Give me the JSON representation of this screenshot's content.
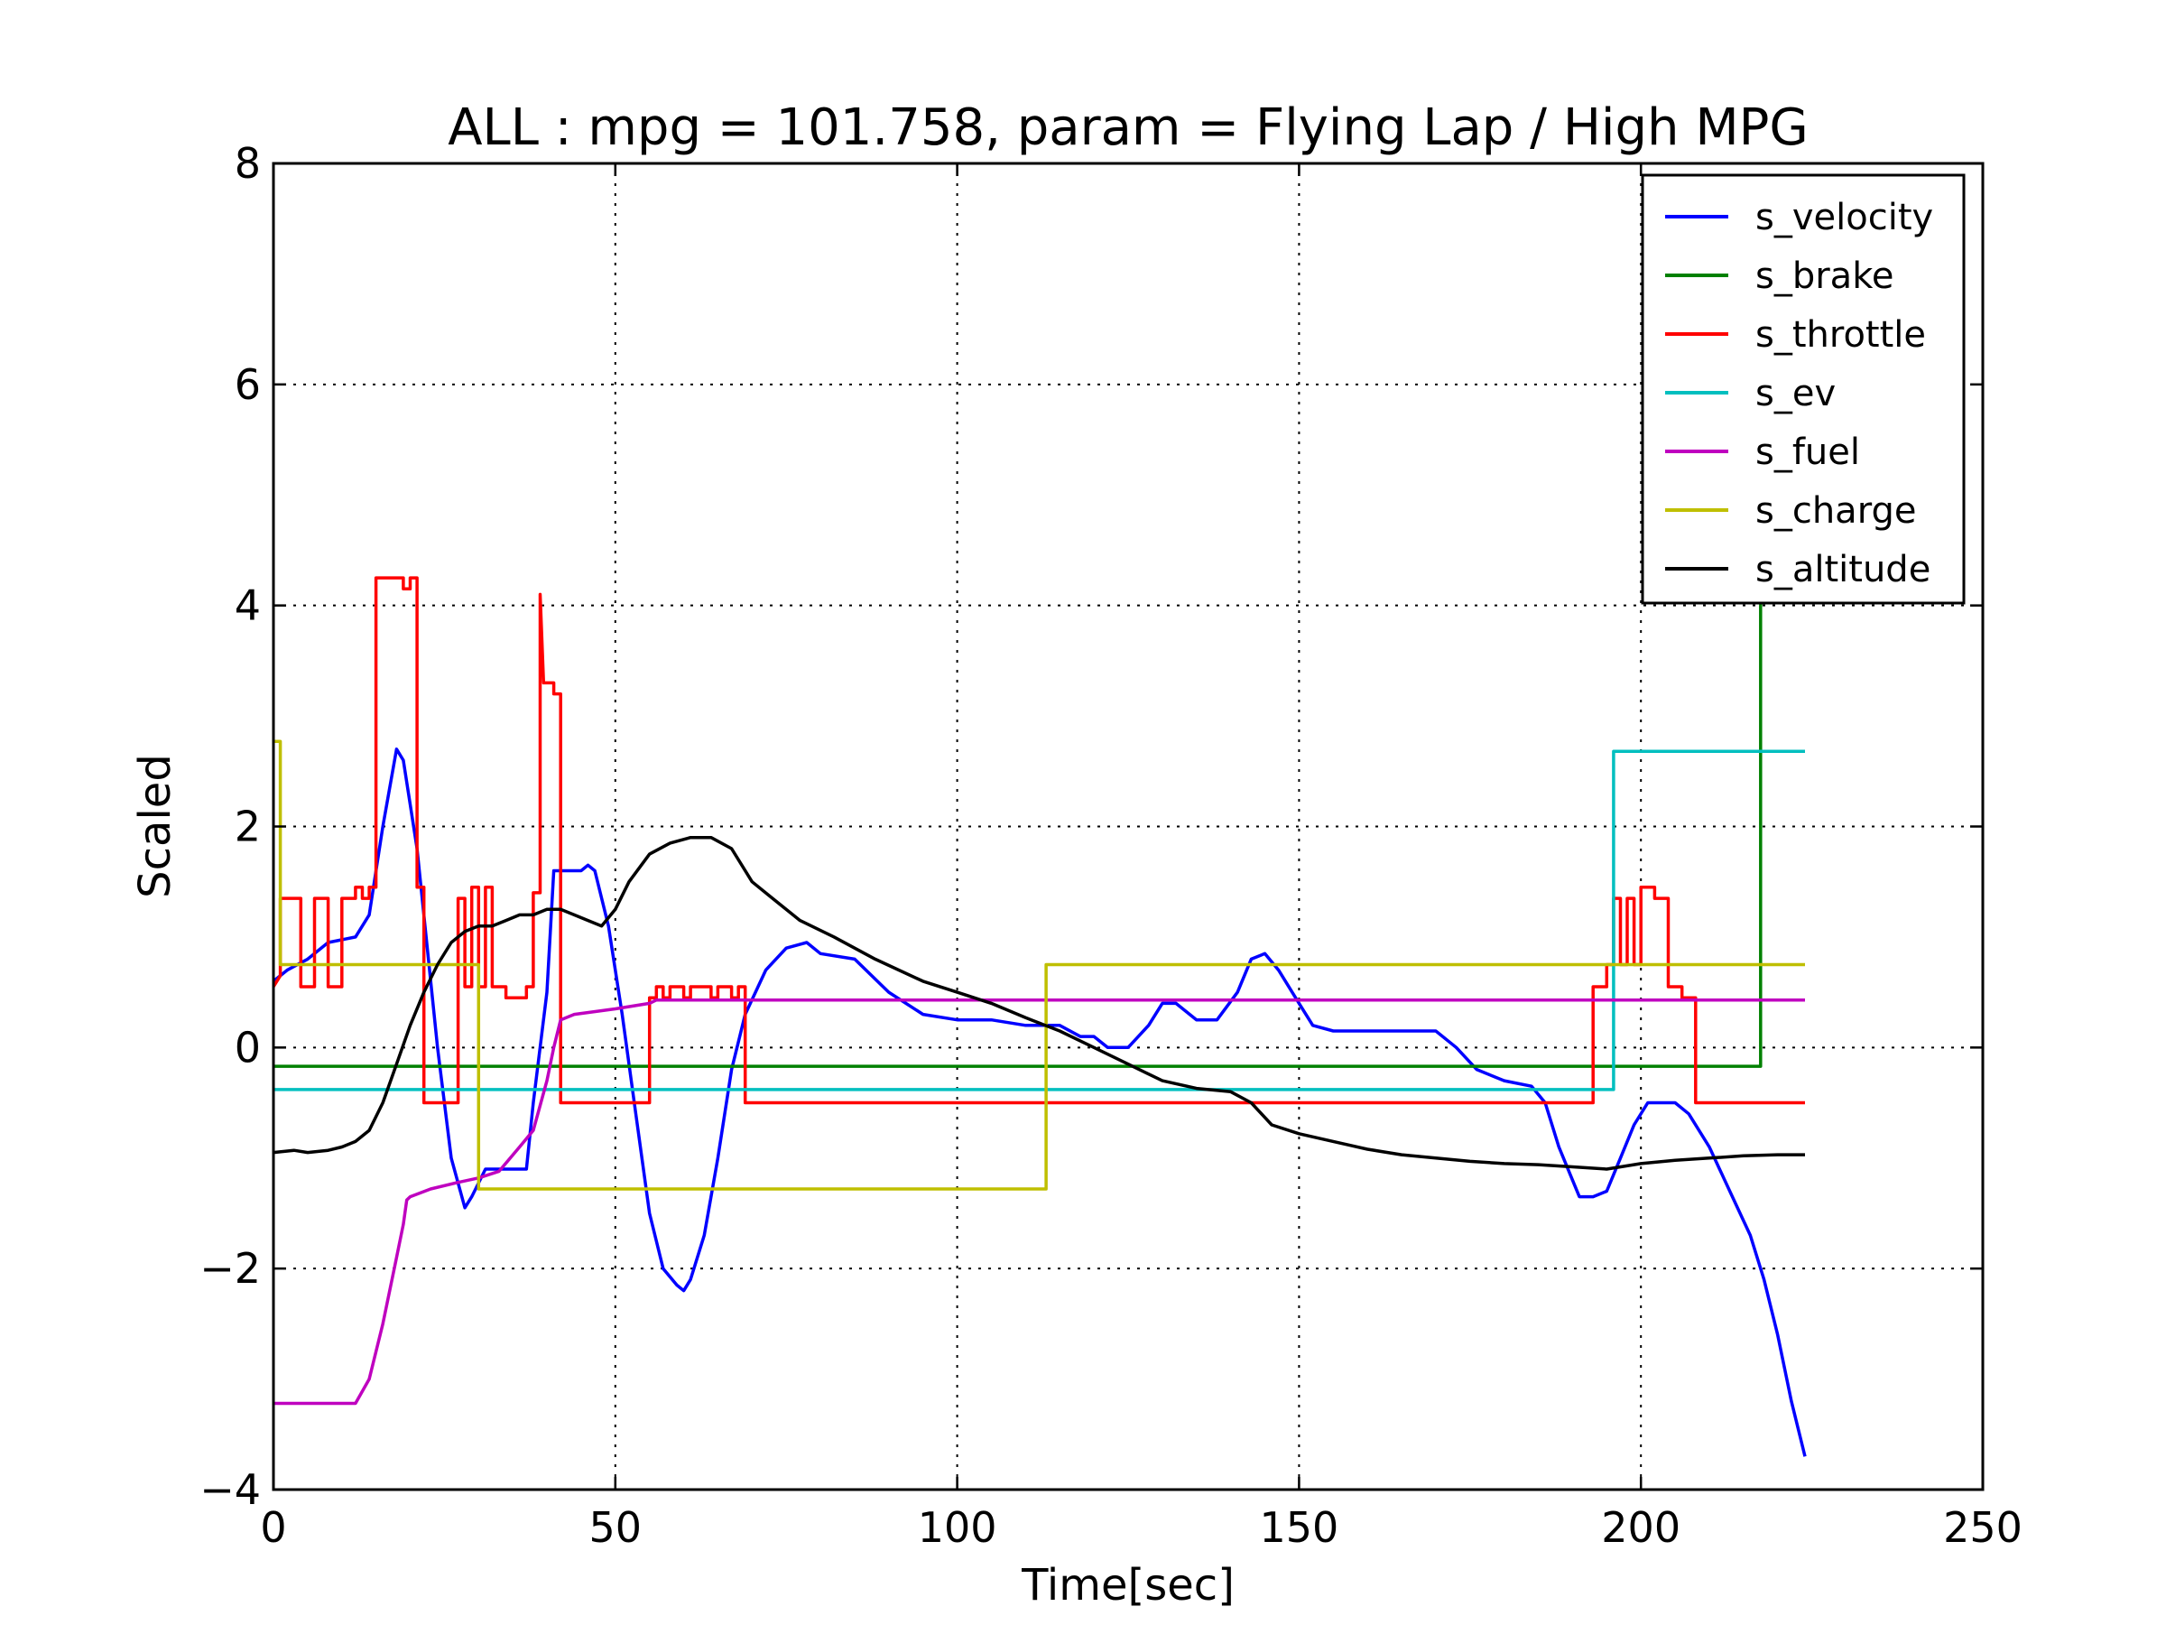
{
  "chart_data": {
    "type": "line",
    "title": "ALL : mpg = 101.758, param = Flying Lap / High MPG",
    "xlabel": "Time[sec]",
    "ylabel": "Scaled",
    "xlim": [
      0,
      250
    ],
    "ylim": [
      -4,
      8
    ],
    "xticks": [
      0,
      50,
      100,
      150,
      200,
      250
    ],
    "xtick_labels": [
      "0",
      "50",
      "100",
      "150",
      "200",
      "250"
    ],
    "yticks": [
      -4,
      -2,
      0,
      2,
      4,
      6,
      8
    ],
    "ytick_labels": [
      "−4",
      "−2",
      "0",
      "2",
      "4",
      "6",
      "8"
    ],
    "grid": true,
    "legend_position": "top-right",
    "series": [
      {
        "name": "s_velocity",
        "color": "#0000ff",
        "points": [
          [
            0,
            0.6
          ],
          [
            2,
            0.7
          ],
          [
            5,
            0.8
          ],
          [
            8,
            0.95
          ],
          [
            12,
            1.0
          ],
          [
            14,
            1.2
          ],
          [
            16,
            2.0
          ],
          [
            18,
            2.7
          ],
          [
            19,
            2.6
          ],
          [
            21,
            1.8
          ],
          [
            24,
            0.0
          ],
          [
            26,
            -1.0
          ],
          [
            28,
            -1.45
          ],
          [
            29,
            -1.35
          ],
          [
            31,
            -1.1
          ],
          [
            37,
            -1.1
          ],
          [
            38,
            -0.5
          ],
          [
            40,
            0.5
          ],
          [
            41,
            1.6
          ],
          [
            45,
            1.6
          ],
          [
            46,
            1.65
          ],
          [
            47,
            1.6
          ],
          [
            49,
            1.1
          ],
          [
            51,
            0.3
          ],
          [
            53,
            -0.6
          ],
          [
            55,
            -1.5
          ],
          [
            57,
            -2.0
          ],
          [
            59,
            -2.15
          ],
          [
            60,
            -2.2
          ],
          [
            61,
            -2.1
          ],
          [
            63,
            -1.7
          ],
          [
            65,
            -1.0
          ],
          [
            67,
            -0.2
          ],
          [
            69,
            0.3
          ],
          [
            72,
            0.7
          ],
          [
            75,
            0.9
          ],
          [
            78,
            0.95
          ],
          [
            80,
            0.85
          ],
          [
            85,
            0.8
          ],
          [
            90,
            0.5
          ],
          [
            95,
            0.3
          ],
          [
            100,
            0.25
          ],
          [
            105,
            0.25
          ],
          [
            110,
            0.2
          ],
          [
            115,
            0.2
          ],
          [
            118,
            0.1
          ],
          [
            120,
            0.1
          ],
          [
            122,
            0.0
          ],
          [
            125,
            0.0
          ],
          [
            128,
            0.2
          ],
          [
            130,
            0.4
          ],
          [
            132,
            0.4
          ],
          [
            135,
            0.25
          ],
          [
            138,
            0.25
          ],
          [
            141,
            0.5
          ],
          [
            143,
            0.8
          ],
          [
            145,
            0.85
          ],
          [
            147,
            0.7
          ],
          [
            150,
            0.4
          ],
          [
            152,
            0.2
          ],
          [
            155,
            0.15
          ],
          [
            165,
            0.15
          ],
          [
            170,
            0.15
          ],
          [
            173,
            0.0
          ],
          [
            176,
            -0.2
          ],
          [
            180,
            -0.3
          ],
          [
            184,
            -0.35
          ],
          [
            186,
            -0.5
          ],
          [
            188,
            -0.9
          ],
          [
            190,
            -1.2
          ],
          [
            191,
            -1.35
          ],
          [
            193,
            -1.35
          ],
          [
            195,
            -1.3
          ],
          [
            197,
            -1.0
          ],
          [
            199,
            -0.7
          ],
          [
            201,
            -0.5
          ],
          [
            205,
            -0.5
          ],
          [
            207,
            -0.6
          ],
          [
            210,
            -0.9
          ],
          [
            213,
            -1.3
          ],
          [
            216,
            -1.7
          ],
          [
            218,
            -2.1
          ],
          [
            220,
            -2.6
          ],
          [
            222,
            -3.2
          ],
          [
            224,
            -3.7
          ]
        ]
      },
      {
        "name": "s_brake",
        "color": "#008000",
        "points": [
          [
            0,
            -0.17
          ],
          [
            217.5,
            -0.17
          ],
          [
            217.5,
            4.0
          ],
          [
            218,
            4.4
          ]
        ]
      },
      {
        "name": "s_throttle",
        "color": "#ff0000",
        "points": [
          [
            0,
            0.55
          ],
          [
            1,
            0.65
          ],
          [
            1,
            1.35
          ],
          [
            4,
            1.35
          ],
          [
            4,
            0.55
          ],
          [
            6,
            0.55
          ],
          [
            6,
            1.35
          ],
          [
            8,
            1.35
          ],
          [
            8,
            0.55
          ],
          [
            10,
            0.55
          ],
          [
            10,
            1.35
          ],
          [
            12,
            1.35
          ],
          [
            12,
            1.45
          ],
          [
            13,
            1.45
          ],
          [
            13,
            1.35
          ],
          [
            14,
            1.35
          ],
          [
            14,
            1.45
          ],
          [
            15,
            1.45
          ],
          [
            15,
            4.25
          ],
          [
            19,
            4.25
          ],
          [
            19,
            4.15
          ],
          [
            20,
            4.15
          ],
          [
            20,
            4.25
          ],
          [
            21,
            4.25
          ],
          [
            21,
            1.45
          ],
          [
            22,
            1.45
          ],
          [
            22,
            -0.5
          ],
          [
            27,
            -0.5
          ],
          [
            27,
            1.35
          ],
          [
            28,
            1.35
          ],
          [
            28,
            0.55
          ],
          [
            29,
            0.55
          ],
          [
            29,
            1.45
          ],
          [
            30,
            1.45
          ],
          [
            30,
            0.55
          ],
          [
            31,
            0.55
          ],
          [
            31,
            1.45
          ],
          [
            32,
            1.45
          ],
          [
            32,
            0.55
          ],
          [
            34,
            0.55
          ],
          [
            34,
            0.45
          ],
          [
            37,
            0.45
          ],
          [
            37,
            0.55
          ],
          [
            38,
            0.55
          ],
          [
            38,
            1.4
          ],
          [
            39,
            1.4
          ],
          [
            39,
            4.1
          ],
          [
            39.5,
            3.3
          ],
          [
            41,
            3.3
          ],
          [
            41,
            3.2
          ],
          [
            42,
            3.2
          ],
          [
            42,
            -0.5
          ],
          [
            55,
            -0.5
          ],
          [
            55,
            0.45
          ],
          [
            56,
            0.45
          ],
          [
            56,
            0.55
          ],
          [
            57,
            0.55
          ],
          [
            57,
            0.45
          ],
          [
            58,
            0.45
          ],
          [
            58,
            0.55
          ],
          [
            60,
            0.55
          ],
          [
            60,
            0.45
          ],
          [
            61,
            0.45
          ],
          [
            61,
            0.55
          ],
          [
            64,
            0.55
          ],
          [
            64,
            0.45
          ],
          [
            65,
            0.45
          ],
          [
            65,
            0.55
          ],
          [
            67,
            0.55
          ],
          [
            67,
            0.45
          ],
          [
            68,
            0.45
          ],
          [
            68,
            0.55
          ],
          [
            69,
            0.55
          ],
          [
            69,
            -0.5
          ],
          [
            193,
            -0.5
          ],
          [
            193,
            0.55
          ],
          [
            195,
            0.55
          ],
          [
            195,
            0.75
          ],
          [
            196,
            0.75
          ],
          [
            196,
            1.35
          ],
          [
            197,
            1.35
          ],
          [
            197,
            0.75
          ],
          [
            198,
            0.75
          ],
          [
            198,
            1.35
          ],
          [
            199,
            1.35
          ],
          [
            199,
            0.75
          ],
          [
            200,
            0.75
          ],
          [
            200,
            1.45
          ],
          [
            202,
            1.45
          ],
          [
            202,
            1.35
          ],
          [
            204,
            1.35
          ],
          [
            204,
            0.55
          ],
          [
            206,
            0.55
          ],
          [
            206,
            0.45
          ],
          [
            208,
            0.45
          ],
          [
            208,
            -0.5
          ],
          [
            224,
            -0.5
          ]
        ]
      },
      {
        "name": "s_ev",
        "color": "#00bfbf",
        "points": [
          [
            0,
            -0.38
          ],
          [
            196,
            -0.38
          ],
          [
            196,
            2.68
          ],
          [
            224,
            2.68
          ]
        ]
      },
      {
        "name": "s_fuel",
        "color": "#bf00bf",
        "points": [
          [
            0,
            -3.22
          ],
          [
            12,
            -3.22
          ],
          [
            14,
            -3.0
          ],
          [
            16,
            -2.5
          ],
          [
            18,
            -1.9
          ],
          [
            19,
            -1.6
          ],
          [
            19.5,
            -1.38
          ],
          [
            20,
            -1.35
          ],
          [
            23,
            -1.28
          ],
          [
            27,
            -1.22
          ],
          [
            30,
            -1.18
          ],
          [
            33,
            -1.12
          ],
          [
            36,
            -0.9
          ],
          [
            38,
            -0.75
          ],
          [
            40,
            -0.3
          ],
          [
            41,
            0.0
          ],
          [
            42,
            0.25
          ],
          [
            44,
            0.3
          ],
          [
            50,
            0.35
          ],
          [
            55,
            0.4
          ],
          [
            56,
            0.43
          ],
          [
            224,
            0.43
          ]
        ]
      },
      {
        "name": "s_charge",
        "color": "#bfbf00",
        "points": [
          [
            0,
            2.77
          ],
          [
            1,
            2.77
          ],
          [
            1,
            0.75
          ],
          [
            30,
            0.75
          ],
          [
            30,
            -1.28
          ],
          [
            113,
            -1.28
          ],
          [
            113,
            0.75
          ],
          [
            224,
            0.75
          ]
        ]
      },
      {
        "name": "s_altitude",
        "color": "#000000",
        "points": [
          [
            0,
            -0.95
          ],
          [
            3,
            -0.93
          ],
          [
            5,
            -0.95
          ],
          [
            8,
            -0.93
          ],
          [
            10,
            -0.9
          ],
          [
            12,
            -0.85
          ],
          [
            14,
            -0.75
          ],
          [
            16,
            -0.5
          ],
          [
            18,
            -0.15
          ],
          [
            20,
            0.2
          ],
          [
            22,
            0.5
          ],
          [
            24,
            0.75
          ],
          [
            26,
            0.95
          ],
          [
            28,
            1.05
          ],
          [
            30,
            1.1
          ],
          [
            32,
            1.1
          ],
          [
            34,
            1.15
          ],
          [
            36,
            1.2
          ],
          [
            38,
            1.2
          ],
          [
            40,
            1.25
          ],
          [
            42,
            1.25
          ],
          [
            44,
            1.2
          ],
          [
            46,
            1.15
          ],
          [
            48,
            1.1
          ],
          [
            50,
            1.25
          ],
          [
            52,
            1.5
          ],
          [
            55,
            1.75
          ],
          [
            58,
            1.85
          ],
          [
            61,
            1.9
          ],
          [
            64,
            1.9
          ],
          [
            67,
            1.8
          ],
          [
            70,
            1.5
          ],
          [
            73,
            1.35
          ],
          [
            77,
            1.15
          ],
          [
            82,
            1.0
          ],
          [
            88,
            0.8
          ],
          [
            95,
            0.6
          ],
          [
            100,
            0.5
          ],
          [
            105,
            0.4
          ],
          [
            110,
            0.27
          ],
          [
            115,
            0.15
          ],
          [
            120,
            0.0
          ],
          [
            125,
            -0.15
          ],
          [
            130,
            -0.3
          ],
          [
            135,
            -0.37
          ],
          [
            140,
            -0.4
          ],
          [
            143,
            -0.5
          ],
          [
            146,
            -0.7
          ],
          [
            150,
            -0.78
          ],
          [
            155,
            -0.85
          ],
          [
            160,
            -0.92
          ],
          [
            165,
            -0.97
          ],
          [
            170,
            -1.0
          ],
          [
            175,
            -1.03
          ],
          [
            180,
            -1.05
          ],
          [
            185,
            -1.06
          ],
          [
            190,
            -1.08
          ],
          [
            195,
            -1.1
          ],
          [
            200,
            -1.05
          ],
          [
            205,
            -1.02
          ],
          [
            210,
            -1.0
          ],
          [
            215,
            -0.98
          ],
          [
            220,
            -0.97
          ],
          [
            224,
            -0.97
          ]
        ]
      }
    ]
  }
}
